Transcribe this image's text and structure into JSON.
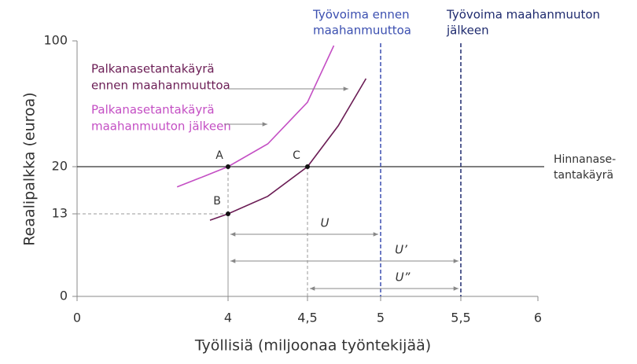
{
  "chart_data": {
    "type": "line",
    "xlabel": "Työllisiä (miljoonaa työntekijää)",
    "ylabel": "Reaalipalkka (euroa)",
    "xlim": [
      0,
      6
    ],
    "ylim": [
      0,
      100
    ],
    "xticks": [
      0,
      4,
      {
        "value": 4.5,
        "label": "4,5"
      },
      5,
      {
        "value": 5.5,
        "label": "5,5"
      },
      6
    ],
    "yticks": [
      0,
      13,
      20,
      100
    ],
    "series": [
      {
        "name": [
          "Palkanasetantakäyrä",
          "ennen maahanmuuttoa"
        ],
        "color": "#6b1d55",
        "x": [
          3.52,
          4,
          4.25,
          4.5,
          4.71,
          4.9
        ],
        "y": [
          12,
          13,
          15.6,
          20,
          46,
          76
        ]
      },
      {
        "name": [
          "Palkanasetantakäyrä",
          "maahanmuuton jälkeen"
        ],
        "color": "#c44fc4",
        "x": [
          2.65,
          3.38,
          4,
          4.25,
          4.5,
          4.68
        ],
        "y": [
          17,
          18.6,
          20,
          34.5,
          61,
          97
        ]
      }
    ],
    "hline": {
      "value": 20,
      "label": [
        "Hinnanase-",
        "tantakäyrä"
      ],
      "color": "#333333"
    },
    "vlines": [
      {
        "value": 5,
        "label": [
          "Työvoima ennen",
          "maahanmuuttoa"
        ],
        "color": "#3b4fb0"
      },
      {
        "value": 5.5,
        "label": [
          "Työvoima maahanmuuton",
          "jälkeen"
        ],
        "color": "#1e2a6e"
      }
    ],
    "points": [
      {
        "label": "A",
        "x": 4,
        "y": 20
      },
      {
        "label": "B",
        "x": 4,
        "y": 13
      },
      {
        "label": "C",
        "x": 4.5,
        "y": 20
      }
    ],
    "gaps": [
      {
        "label": "U",
        "from": 4,
        "to": 5
      },
      {
        "label": "U’",
        "from": 4,
        "to": 5.5
      },
      {
        "label": "U”",
        "from": 4.5,
        "to": 5.5
      }
    ]
  }
}
